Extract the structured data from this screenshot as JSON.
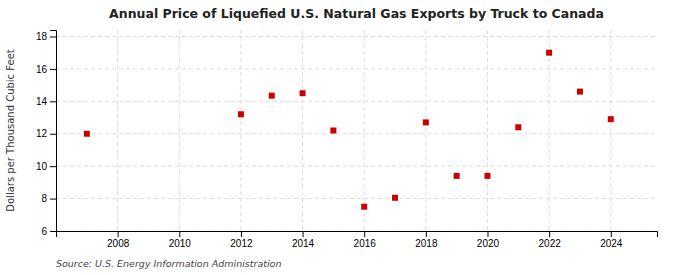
{
  "chart_data": {
    "type": "scatter",
    "title": "Annual Price of Liquefied U.S. Natural Gas Exports by Truck to Canada",
    "ylabel": "Dollars per Thousand Cubic Feet",
    "source": "Source: U.S. Energy Information Administration",
    "x": [
      2007,
      2012,
      2013,
      2014,
      2015,
      2016,
      2017,
      2018,
      2019,
      2020,
      2021,
      2022,
      2023,
      2024
    ],
    "values": [
      12.0,
      13.2,
      14.35,
      14.5,
      12.2,
      7.5,
      8.05,
      12.7,
      9.4,
      9.4,
      12.4,
      17.0,
      14.6,
      12.9
    ],
    "color": "#cc0000",
    "marker": "square",
    "xlim": [
      2006.0,
      2025.5
    ],
    "ylim": [
      6,
      18.4
    ],
    "xticks": [
      2008,
      2010,
      2012,
      2014,
      2016,
      2018,
      2020,
      2022,
      2024
    ],
    "yticks": [
      6,
      8,
      10,
      12,
      14,
      16,
      18
    ],
    "grid": true
  }
}
